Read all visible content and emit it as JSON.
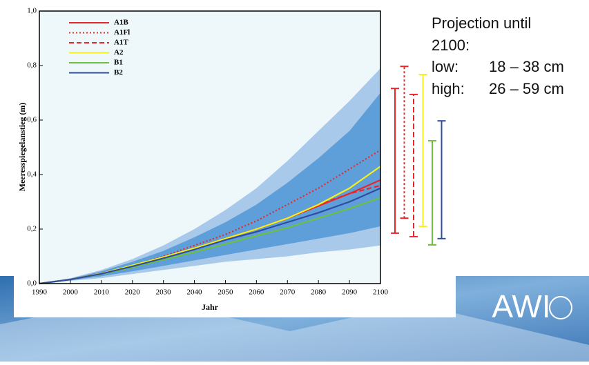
{
  "chart_data": {
    "type": "line",
    "x_label": "Jahr",
    "y_label": "Meeresspiegelanstieg (m)",
    "x": [
      1990,
      2000,
      2010,
      2020,
      2030,
      2040,
      2050,
      2060,
      2070,
      2080,
      2090,
      2100
    ],
    "xlim": [
      1990,
      2100
    ],
    "xticks": [
      1990,
      2000,
      2010,
      2020,
      2030,
      2040,
      2050,
      2060,
      2070,
      2080,
      2090,
      2100
    ],
    "ylim": [
      0,
      1
    ],
    "yticks": [
      {
        "value": 0,
        "label": "0,0"
      },
      {
        "value": 0.2,
        "label": "0,2"
      },
      {
        "value": 0.4,
        "label": "0,4"
      },
      {
        "value": 0.6,
        "label": "0,6"
      },
      {
        "value": 0.8,
        "label": "0,8"
      },
      {
        "value": 1,
        "label": "1,0"
      }
    ],
    "bands": [
      {
        "color": "#a9c9ea",
        "lower": [
          0,
          0.01,
          0.02,
          0.035,
          0.05,
          0.065,
          0.08,
          0.09,
          0.1,
          0.115,
          0.125,
          0.14
        ],
        "upper": [
          0,
          0.02,
          0.05,
          0.09,
          0.14,
          0.2,
          0.27,
          0.35,
          0.45,
          0.56,
          0.67,
          0.79
        ]
      },
      {
        "color": "#5f9fd9",
        "lower": [
          0,
          0.012,
          0.027,
          0.045,
          0.065,
          0.085,
          0.105,
          0.125,
          0.145,
          0.165,
          0.185,
          0.21
        ],
        "upper": [
          0,
          0.018,
          0.045,
          0.08,
          0.12,
          0.17,
          0.225,
          0.29,
          0.37,
          0.46,
          0.56,
          0.7
        ]
      }
    ],
    "series": [
      {
        "name": "A1B",
        "color": "#e8262a",
        "dash": "solid",
        "values": [
          0,
          0.015,
          0.037,
          0.065,
          0.095,
          0.13,
          0.165,
          0.2,
          0.24,
          0.285,
          0.33,
          0.38
        ],
        "range": [
          0.185,
          0.716
        ]
      },
      {
        "name": "A1Fl",
        "color": "#e8262a",
        "dash": "dotted",
        "values": [
          0,
          0.015,
          0.037,
          0.065,
          0.1,
          0.14,
          0.18,
          0.23,
          0.29,
          0.35,
          0.42,
          0.49
        ],
        "range": [
          0.24,
          0.797
        ]
      },
      {
        "name": "A1T",
        "color": "#e8262a",
        "dash": "dashed",
        "values": [
          0,
          0.015,
          0.037,
          0.065,
          0.095,
          0.13,
          0.165,
          0.2,
          0.24,
          0.29,
          0.33,
          0.36
        ],
        "range": [
          0.172,
          0.694
        ]
      },
      {
        "name": "A2",
        "color": "#f5ef1c",
        "dash": "solid",
        "values": [
          0,
          0.015,
          0.037,
          0.067,
          0.097,
          0.13,
          0.165,
          0.2,
          0.24,
          0.29,
          0.35,
          0.43
        ],
        "range": [
          0.21,
          0.767
        ]
      },
      {
        "name": "B1",
        "color": "#6cbf3f",
        "dash": "solid",
        "values": [
          0,
          0.015,
          0.035,
          0.06,
          0.088,
          0.115,
          0.145,
          0.175,
          0.205,
          0.24,
          0.275,
          0.315
        ],
        "range": [
          0.142,
          0.524
        ]
      },
      {
        "name": "B2",
        "color": "#2d4da0",
        "dash": "solid",
        "values": [
          0,
          0.015,
          0.036,
          0.063,
          0.093,
          0.125,
          0.16,
          0.19,
          0.225,
          0.26,
          0.3,
          0.35
        ],
        "range": [
          0.165,
          0.597
        ]
      }
    ]
  },
  "projection": {
    "title": "Projection until",
    "year": "2100:",
    "low_label": "low:",
    "low": "18 – 38 cm",
    "high_label": "high:",
    "high": "26 – 59 cm"
  },
  "logo": "AWI"
}
